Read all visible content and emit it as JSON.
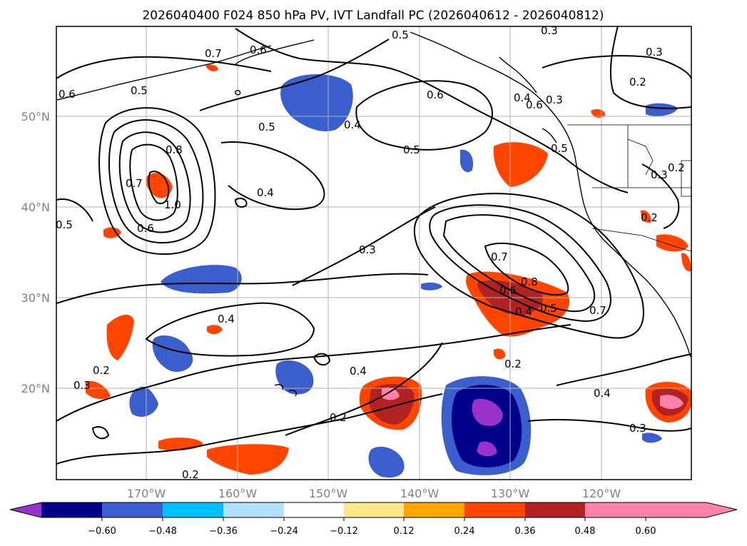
{
  "title": "2026040400 F024 850 hPa PV, IVT Landfall PC (2026040612 - 2026040812)",
  "map": {
    "lon_labels": [
      "170°W",
      "160°W",
      "150°W",
      "140°W",
      "130°W",
      "120°W"
    ],
    "lat_labels": [
      "50°N",
      "40°N",
      "30°N",
      "20°N"
    ]
  },
  "contour_labels": [
    "0.5",
    "0.6",
    "0.3",
    "0.7",
    "0.6",
    "0.5",
    "0.6",
    "0.3",
    "0.4",
    "0.2",
    "0.5",
    "0.4",
    "0.6",
    "0.3",
    "0.8",
    "0.5",
    "0.5",
    "0.7",
    "1.0",
    "0.4",
    "0.6",
    "0.5",
    "0.2",
    "0.3",
    "0.7",
    "0.8",
    "0.6",
    "0.5",
    "0.4",
    "0.7",
    "0.4",
    "0.2",
    "0.2",
    "0.4",
    "0.2",
    "0.3",
    "0.3",
    "0.4",
    "0.2",
    "0.3",
    "0.2"
  ],
  "colorbar": {
    "ticks": [
      "−0.60",
      "−0.48",
      "−0.36",
      "−0.24",
      "−0.12",
      "0.12",
      "0.24",
      "0.36",
      "0.48",
      "0.60"
    ],
    "colors": [
      "#9932cc",
      "#00008b",
      "#3a5fcd",
      "#00bfff",
      "#b0e2ff",
      "#ffffff",
      "#ffe88c",
      "#ffa500",
      "#ff4500",
      "#b22222",
      "#ff82ab"
    ]
  }
}
